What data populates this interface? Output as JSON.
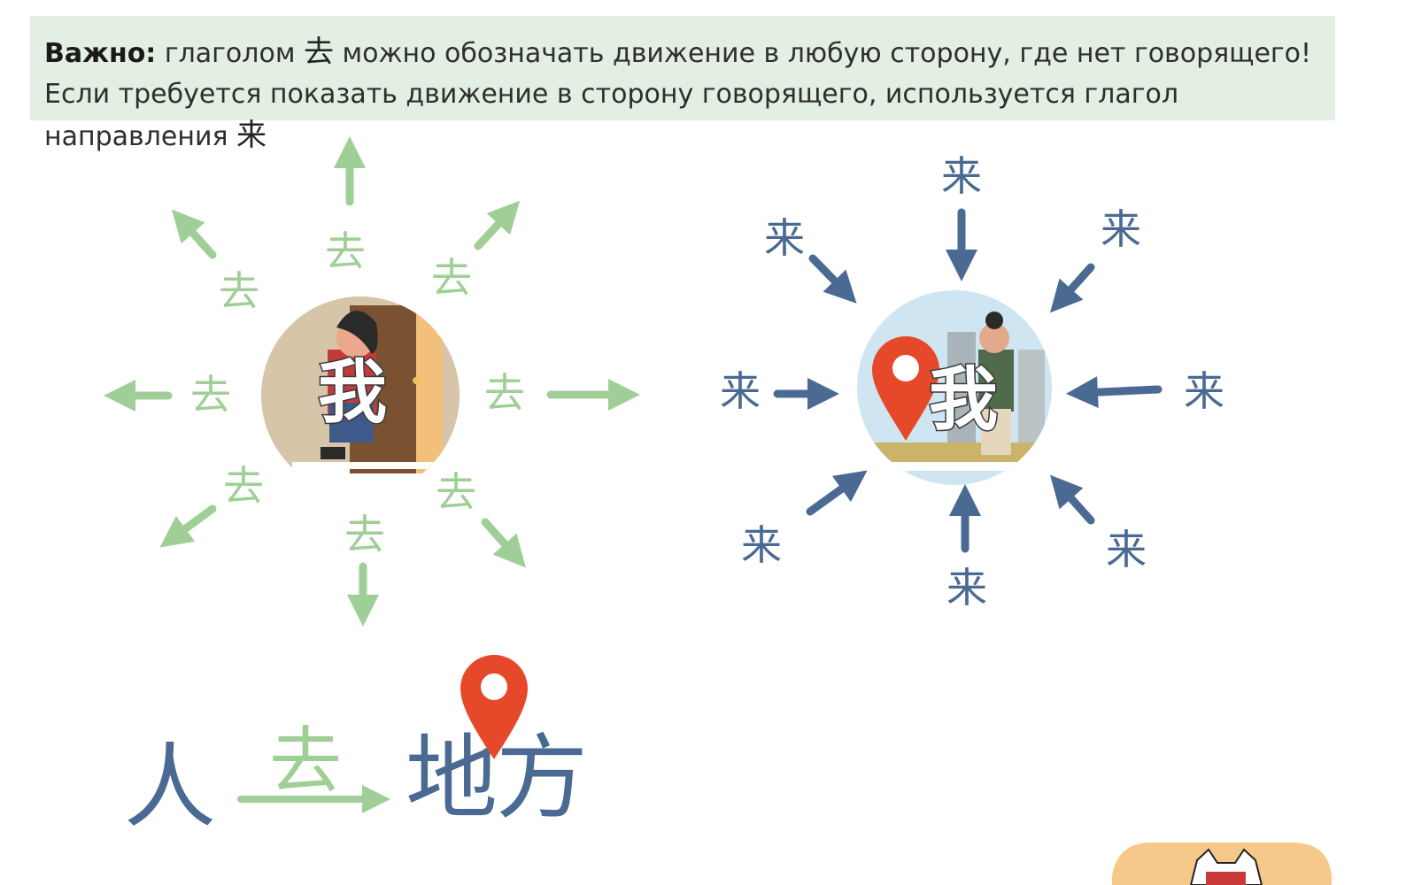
{
  "note": {
    "bold": "Важно:",
    "text1": " глаголом ",
    "qu": "去",
    "text2": " можно обозначать движение в любую сторону, где нет говорящего! Если требуется показать движение в сторону говорящего, используется глагол направления ",
    "lai": "来"
  },
  "left_diagram": {
    "center": "我",
    "label": "去"
  },
  "right_diagram": {
    "center": "我",
    "label": "来"
  },
  "phrase": {
    "person": "人",
    "verb": "去",
    "place1": "地",
    "place2": "方"
  },
  "colors": {
    "green": "#9fcf96",
    "blue": "#4a6a93",
    "pin": "#e5492a",
    "note_bg": "#e3efe2"
  }
}
